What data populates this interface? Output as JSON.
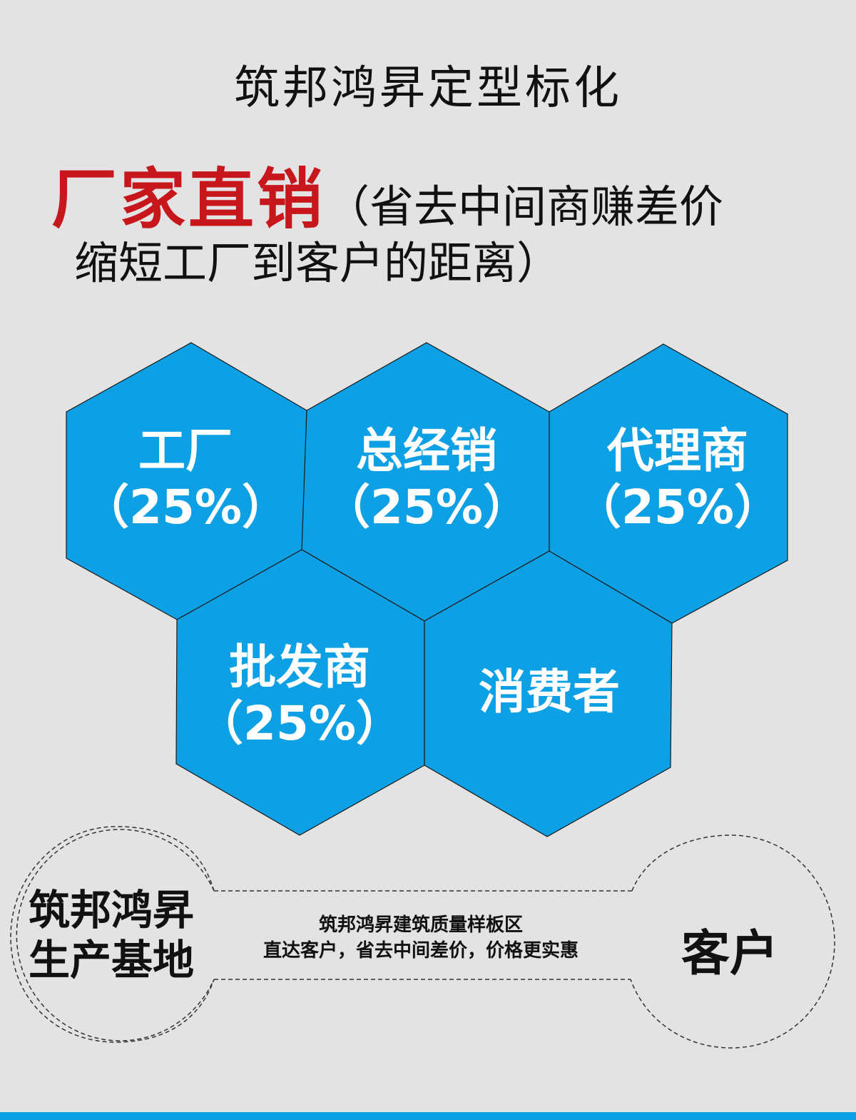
{
  "title": "筑邦鸿昇定型标化",
  "headline": {
    "emphasis": "厂家直销",
    "note_line1": "（省去中间商赚差价",
    "note_line2": "缩短工厂到客户的距离）"
  },
  "hexagons": [
    {
      "name": "工厂",
      "percent": "（25%）"
    },
    {
      "name": "总经销",
      "percent": "（25%）"
    },
    {
      "name": "代理商",
      "percent": "（25%）"
    },
    {
      "name": "批发商",
      "percent": "（25%）"
    },
    {
      "name": "消费者"
    }
  ],
  "bottom": {
    "left_line1": "筑邦鸿昇",
    "left_line2": "生产基地",
    "middle_line1": "筑邦鸿昇建筑质量样板区",
    "middle_line2": "直达客户，省去中间差价，价格更实惠",
    "right": "客户"
  },
  "colors": {
    "hex_fill": "#0ea0e4",
    "emphasis": "#c8161d",
    "background": "#e3e3e3"
  }
}
